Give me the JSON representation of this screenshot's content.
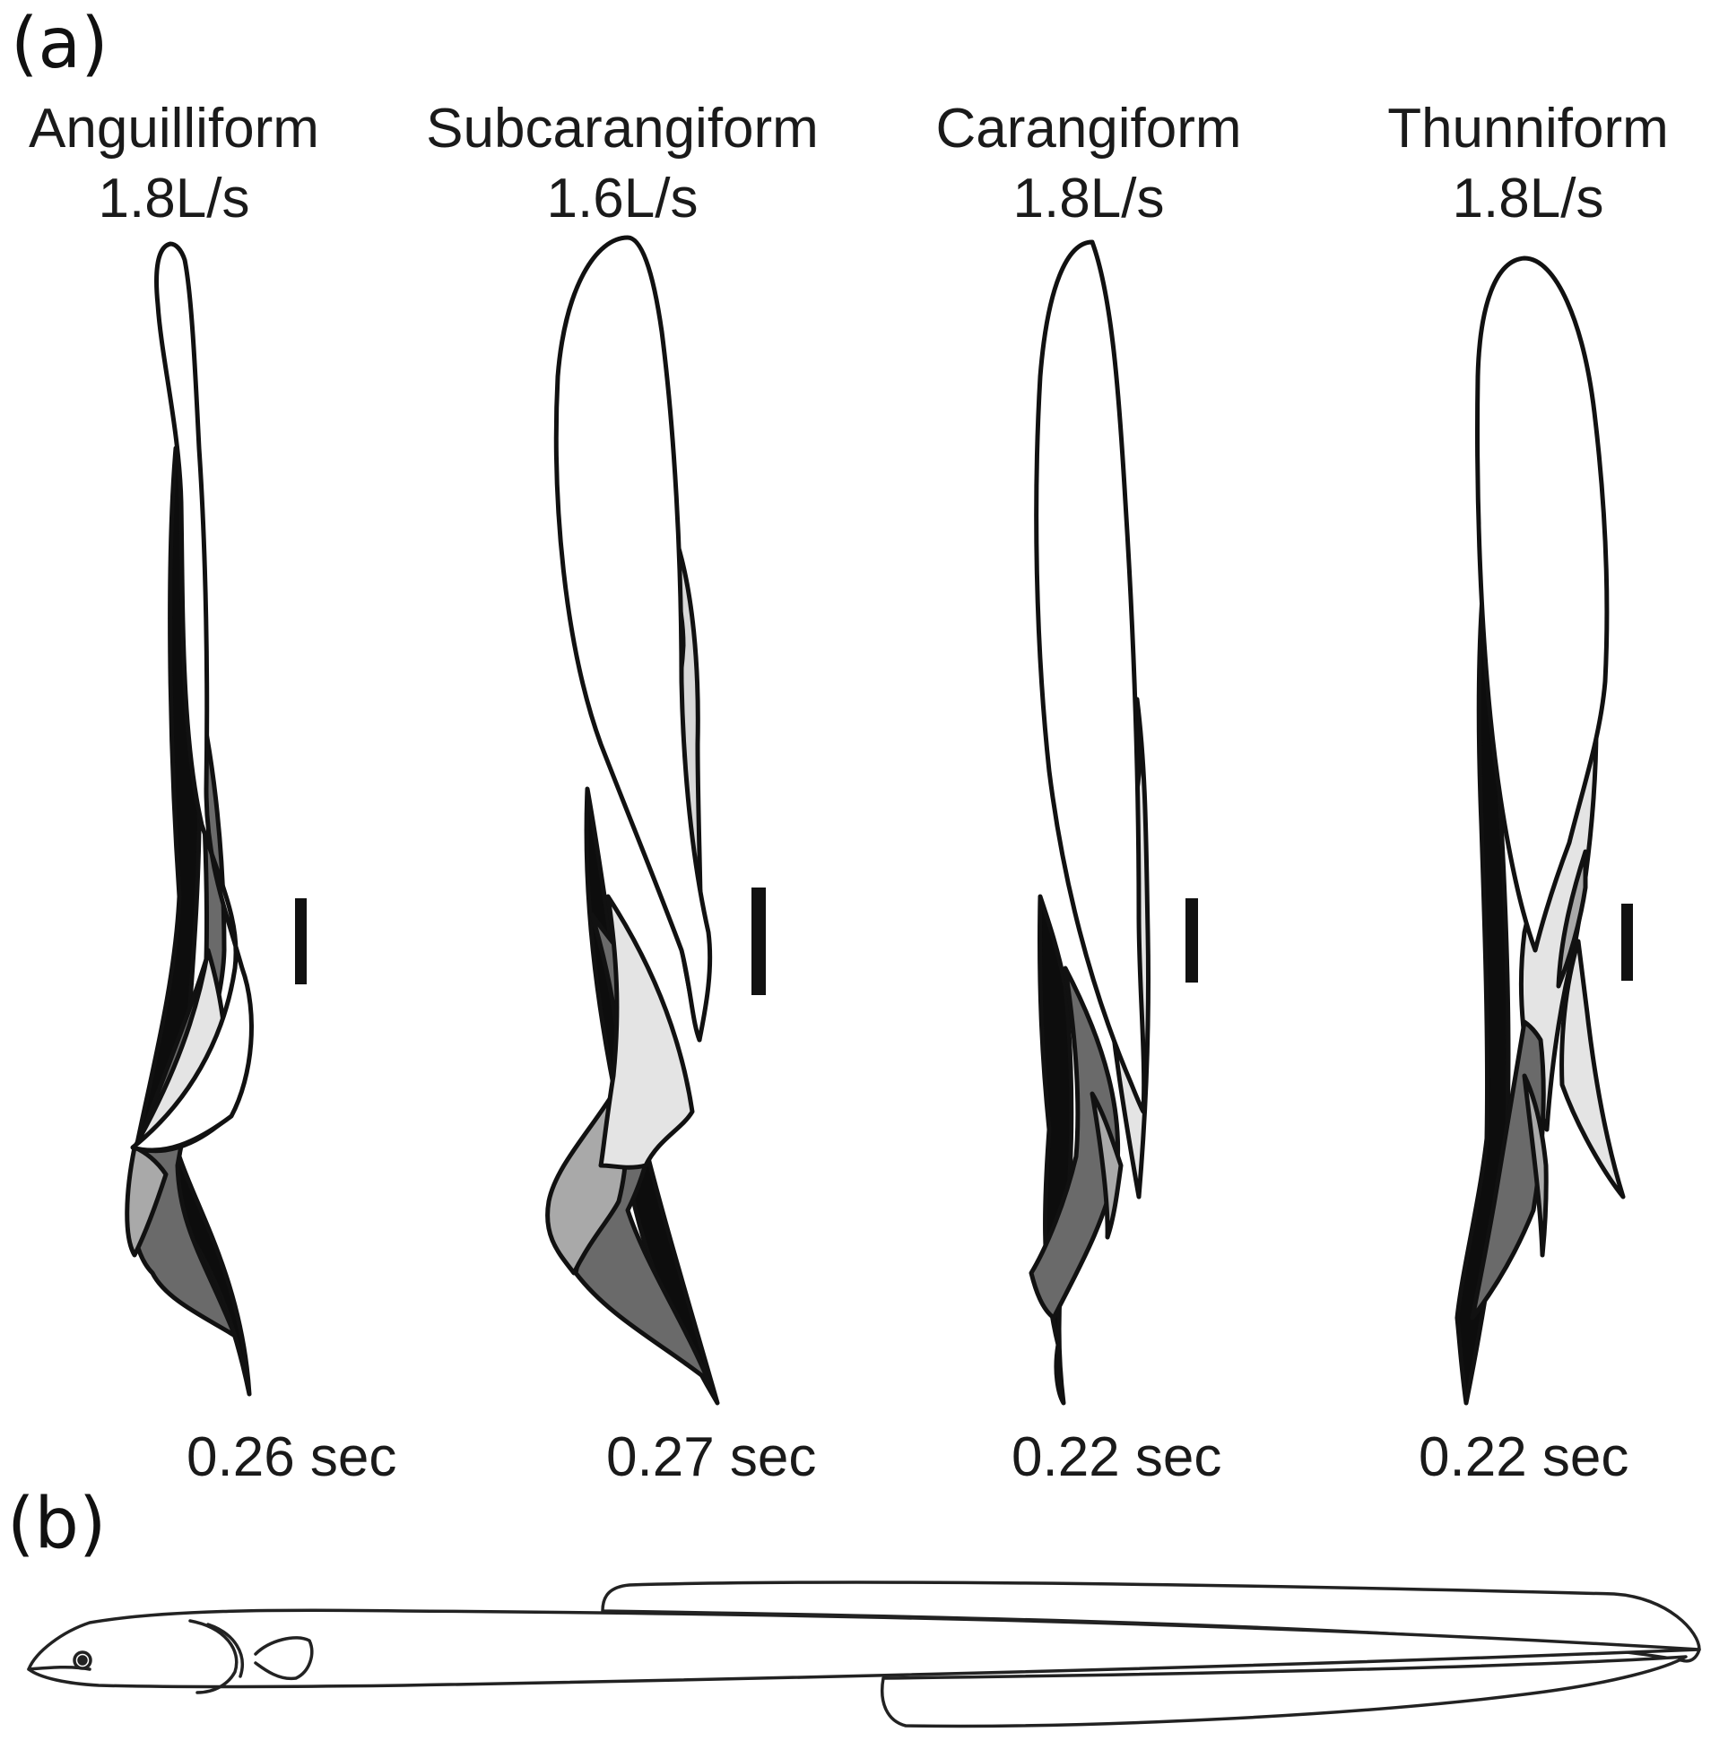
{
  "panels": {
    "a": {
      "label": "(a)"
    },
    "b": {
      "label": "(b)"
    }
  },
  "modes": [
    {
      "name": "Anguilliform",
      "speed": "1.8L/s",
      "period": "0.26 sec"
    },
    {
      "name": "Subcarangiform",
      "speed": "1.6L/s",
      "period": "0.27 sec"
    },
    {
      "name": "Carangiform",
      "speed": "1.8L/s",
      "period": "0.22 sec"
    },
    {
      "name": "Thunniform",
      "speed": "1.8L/s",
      "period": "0.22 sec"
    }
  ],
  "colors": {
    "outline": "#111111",
    "frame_black": "#0d0d0d",
    "frame_dark": "#6a6a6a",
    "frame_mid": "#a9a9a9",
    "frame_light": "#e4e4e4",
    "body_fill": "#ffffff"
  }
}
